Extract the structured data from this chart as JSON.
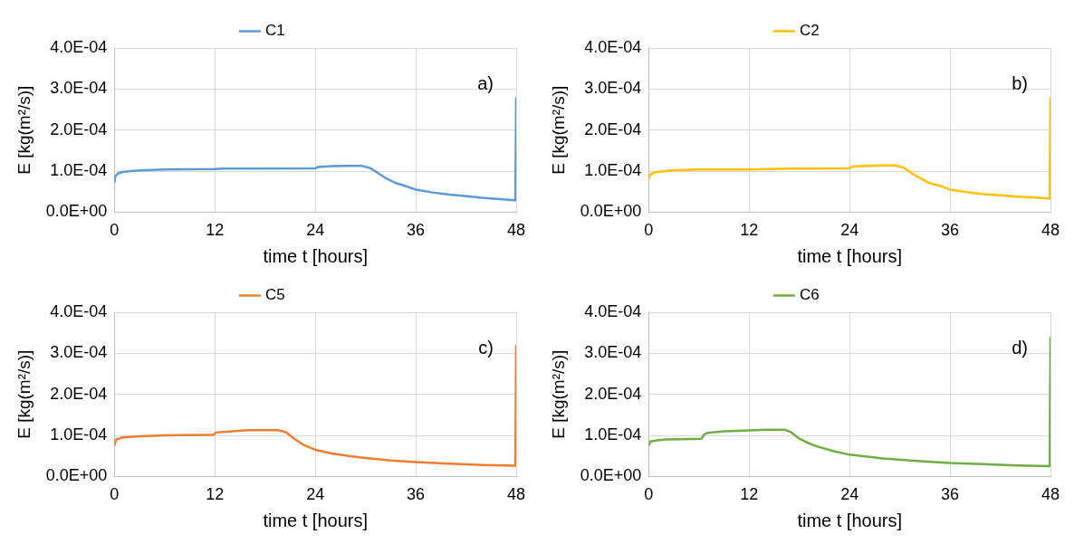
{
  "chart_data": [
    {
      "type": "line",
      "xlabel": "time t [hours]",
      "ylabel": "E [kg(m²/s)]",
      "annotations": [
        "a)"
      ],
      "legend": "top",
      "grid": true,
      "marker": "none",
      "line_style": "solid",
      "xlim": [
        0,
        48
      ],
      "xticks": [
        0,
        12,
        24,
        36,
        48
      ],
      "ylim": [
        0,
        0.0004
      ],
      "yticks": [
        {
          "value": 0,
          "label": "0.0E+00"
        },
        {
          "value": 0.0001,
          "label": "1.0E-04"
        },
        {
          "value": 0.0002,
          "label": "2.0E-04"
        },
        {
          "value": 0.0003,
          "label": "3.0E-04"
        },
        {
          "value": 0.0004,
          "label": "4.0E-04"
        }
      ],
      "x": [
        0,
        0.1,
        0.5,
        1,
        2,
        3,
        6,
        12,
        13,
        24,
        24.3,
        26,
        28,
        29.5,
        30.5,
        31.5,
        32.5,
        33.5,
        35,
        36,
        38,
        40,
        42,
        44,
        46,
        47.9,
        48
      ],
      "series": [
        {
          "name": "C1",
          "color": "#5b9bd5",
          "values": [
            7.2e-05,
            8.8e-05,
            9.5e-05,
            9.8e-05,
            0.0001,
            0.000102,
            0.000104,
            0.000105,
            0.000106,
            0.000107,
            0.00011,
            0.000112,
            0.000113,
            0.000113,
            0.000108,
            9.5e-05,
            8.2e-05,
            7.2e-05,
            6.2e-05,
            5.5e-05,
            4.8e-05,
            4.3e-05,
            3.9e-05,
            3.5e-05,
            3.2e-05,
            2.9e-05,
            0.00028
          ]
        }
      ]
    },
    {
      "type": "line",
      "xlabel": "time t [hours]",
      "ylabel": "E [kg(m²/s)]",
      "annotations": [
        "b)"
      ],
      "legend": "top",
      "grid": true,
      "marker": "none",
      "line_style": "solid",
      "xlim": [
        0,
        48
      ],
      "xticks": [
        0,
        12,
        24,
        36,
        48
      ],
      "ylim": [
        0,
        0.0004
      ],
      "yticks": [
        {
          "value": 0,
          "label": "0.0E+00"
        },
        {
          "value": 0.0001,
          "label": "1.0E-04"
        },
        {
          "value": 0.0002,
          "label": "2.0E-04"
        },
        {
          "value": 0.0003,
          "label": "3.0E-04"
        },
        {
          "value": 0.0004,
          "label": "4.0E-04"
        }
      ],
      "x": [
        0,
        0.1,
        0.5,
        1,
        2,
        3,
        6,
        12,
        17,
        24,
        24.3,
        26,
        28,
        29.5,
        30.5,
        31.5,
        32.5,
        33.5,
        35,
        36,
        38,
        40,
        42,
        44,
        46,
        47.9,
        48
      ],
      "series": [
        {
          "name": "C2",
          "color": "#ffc000",
          "values": [
            8e-05,
            9e-05,
            9.5e-05,
            9.8e-05,
            0.0001,
            0.000102,
            0.000104,
            0.000104,
            0.000106,
            0.000107,
            0.000111,
            0.000113,
            0.000114,
            0.000114,
            0.000108,
            9.4e-05,
            8.2e-05,
            7.1e-05,
            6.3e-05,
            5.5e-05,
            4.9e-05,
            4.4e-05,
            4.1e-05,
            3.8e-05,
            3.6e-05,
            3.3e-05,
            0.00028
          ]
        }
      ]
    },
    {
      "type": "line",
      "xlabel": "time t [hours]",
      "ylabel": "E [kg(m²/s)]",
      "annotations": [
        "c)"
      ],
      "legend": "top",
      "grid": true,
      "marker": "none",
      "line_style": "solid",
      "xlim": [
        0,
        48
      ],
      "xticks": [
        0,
        12,
        24,
        36,
        48
      ],
      "ylim": [
        0,
        0.0004
      ],
      "yticks": [
        {
          "value": 0,
          "label": "0.0E+00"
        },
        {
          "value": 0.0001,
          "label": "1.0E-04"
        },
        {
          "value": 0.0002,
          "label": "2.0E-04"
        },
        {
          "value": 0.0003,
          "label": "3.0E-04"
        },
        {
          "value": 0.0004,
          "label": "4.0E-04"
        }
      ],
      "x": [
        0,
        0.2,
        1,
        3,
        6,
        11.9,
        12.1,
        14,
        16,
        19.5,
        20.5,
        21.5,
        22.5,
        24,
        26,
        28,
        30,
        33,
        36,
        40,
        44,
        47.9,
        48
      ],
      "series": [
        {
          "name": "C5",
          "color": "#ed7d31",
          "values": [
            7.5e-05,
            9e-05,
            9.5e-05,
            9.8e-05,
            0.0001,
            0.000102,
            0.000107,
            0.00011,
            0.000113,
            0.000113,
            0.000108,
            9.2e-05,
            7.8e-05,
            6.5e-05,
            5.6e-05,
            5e-05,
            4.5e-05,
            3.9e-05,
            3.5e-05,
            3.1e-05,
            2.8e-05,
            2.6e-05,
            0.00032
          ]
        }
      ]
    },
    {
      "type": "line",
      "xlabel": "time t [hours]",
      "ylabel": "E [kg(m²/s)]",
      "annotations": [
        "d)"
      ],
      "legend": "top",
      "grid": true,
      "marker": "none",
      "line_style": "solid",
      "xlim": [
        0,
        48
      ],
      "xticks": [
        0,
        12,
        24,
        36,
        48
      ],
      "ylim": [
        0,
        0.0004
      ],
      "yticks": [
        {
          "value": 0,
          "label": "0.0E+00"
        },
        {
          "value": 0.0001,
          "label": "1.0E-04"
        },
        {
          "value": 0.0002,
          "label": "2.0E-04"
        },
        {
          "value": 0.0003,
          "label": "3.0E-04"
        },
        {
          "value": 0.0004,
          "label": "4.0E-04"
        }
      ],
      "x": [
        0,
        0.2,
        1,
        2,
        6.3,
        6.6,
        7,
        9,
        12,
        14,
        16.2,
        17,
        18,
        19,
        20,
        22,
        24,
        28,
        32,
        36,
        40,
        44,
        47.9,
        48
      ],
      "series": [
        {
          "name": "C6",
          "color": "#70ad47",
          "values": [
            7.5e-05,
            8.5e-05,
            8.8e-05,
            9e-05,
            9.2e-05,
            0.000102,
            0.000106,
            0.00011,
            0.000112,
            0.000114,
            0.000114,
            0.000108,
            9.2e-05,
            8.2e-05,
            7.4e-05,
            6.2e-05,
            5.3e-05,
            4.4e-05,
            3.8e-05,
            3.3e-05,
            3e-05,
            2.7e-05,
            2.5e-05,
            0.00034
          ]
        }
      ]
    }
  ]
}
